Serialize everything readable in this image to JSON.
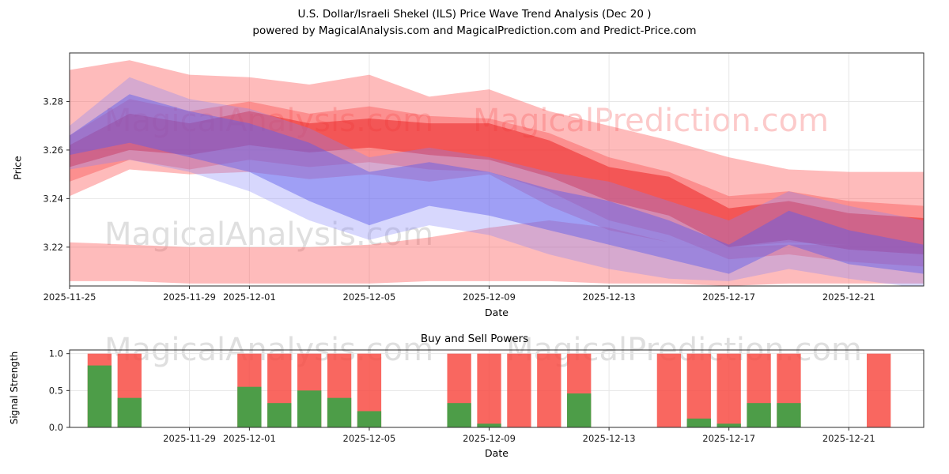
{
  "title": {
    "line1": "U.S. Dollar/Israeli Shekel (ILS) Price Wave Trend Analysis (Dec 20 )",
    "line2": "powered by MagicalAnalysis.com and MagicalPrediction.com and Predict-Price.com"
  },
  "watermarks": {
    "analysis": "MagicalAnalysis.com",
    "prediction": "MagicalPrediction.com"
  },
  "chart_data": [
    {
      "type": "area",
      "name": "price-wave-trend",
      "xlabel": "Date",
      "ylabel": "Price",
      "xlim": [
        0,
        28.5
      ],
      "ylim": [
        3.204,
        3.3
      ],
      "x_days": [
        0,
        2,
        4,
        6,
        8,
        10,
        12,
        14,
        16,
        18,
        20,
        22,
        24,
        26,
        28.5
      ],
      "day0_date": "2025-11-25",
      "xticks": [
        {
          "day": 0,
          "label": "2025-11-25"
        },
        {
          "day": 4,
          "label": "2025-11-29"
        },
        {
          "day": 6,
          "label": "2025-12-01"
        },
        {
          "day": 10,
          "label": "2025-12-05"
        },
        {
          "day": 14,
          "label": "2025-12-09"
        },
        {
          "day": 18,
          "label": "2025-12-13"
        },
        {
          "day": 22,
          "label": "2025-12-17"
        },
        {
          "day": 26,
          "label": "2025-12-21"
        }
      ],
      "yticks": [
        {
          "v": 3.22,
          "label": "3.22"
        },
        {
          "v": 3.24,
          "label": "3.24"
        },
        {
          "v": 3.26,
          "label": "3.26"
        },
        {
          "v": 3.28,
          "label": "3.28"
        }
      ],
      "bands": [
        {
          "name": "red-outer-upper",
          "color": "rgba(252,92,92,0.42)",
          "upper": [
            3.293,
            3.297,
            3.291,
            3.29,
            3.287,
            3.291,
            3.282,
            3.285,
            3.276,
            3.27,
            3.264,
            3.257,
            3.252,
            3.251,
            3.251
          ],
          "lower": [
            3.241,
            3.252,
            3.25,
            3.251,
            3.248,
            3.25,
            3.247,
            3.25,
            3.237,
            3.227,
            3.222,
            3.22,
            3.222,
            3.221,
            3.22
          ]
        },
        {
          "name": "red-lower-strip",
          "color": "rgba(252,92,92,0.42)",
          "upper": [
            3.222,
            3.221,
            3.22,
            3.22,
            3.22,
            3.221,
            3.224,
            3.228,
            3.231,
            3.228,
            3.222,
            3.22,
            3.221,
            3.221,
            3.22
          ],
          "lower": [
            3.206,
            3.206,
            3.205,
            3.205,
            3.205,
            3.205,
            3.206,
            3.206,
            3.206,
            3.205,
            3.205,
            3.204,
            3.205,
            3.205,
            3.205
          ]
        },
        {
          "name": "red-medium",
          "color": "rgba(250,70,70,0.38)",
          "upper": [
            3.266,
            3.281,
            3.276,
            3.28,
            3.275,
            3.278,
            3.274,
            3.273,
            3.267,
            3.257,
            3.251,
            3.241,
            3.243,
            3.239,
            3.237
          ],
          "lower": [
            3.247,
            3.256,
            3.252,
            3.256,
            3.253,
            3.255,
            3.252,
            3.251,
            3.243,
            3.231,
            3.225,
            3.215,
            3.217,
            3.214,
            3.212
          ]
        },
        {
          "name": "red-core",
          "color": "rgba(235,40,40,0.55)",
          "upper": [
            3.262,
            3.275,
            3.271,
            3.276,
            3.271,
            3.273,
            3.271,
            3.271,
            3.264,
            3.253,
            3.249,
            3.236,
            3.239,
            3.234,
            3.232
          ],
          "lower": [
            3.253,
            3.26,
            3.258,
            3.262,
            3.259,
            3.261,
            3.258,
            3.256,
            3.249,
            3.239,
            3.233,
            3.22,
            3.223,
            3.219,
            3.217
          ]
        },
        {
          "name": "blue-light",
          "color": "rgba(130,130,250,0.32)",
          "upper": [
            3.27,
            3.29,
            3.281,
            3.277,
            3.269,
            3.257,
            3.261,
            3.257,
            3.251,
            3.247,
            3.239,
            3.231,
            3.243,
            3.237,
            3.231
          ],
          "lower": [
            3.252,
            3.256,
            3.251,
            3.243,
            3.231,
            3.223,
            3.229,
            3.225,
            3.217,
            3.211,
            3.207,
            3.206,
            3.211,
            3.207,
            3.203
          ]
        },
        {
          "name": "blue-main",
          "color": "rgba(90,90,235,0.45)",
          "upper": [
            3.266,
            3.283,
            3.276,
            3.271,
            3.263,
            3.251,
            3.255,
            3.251,
            3.244,
            3.239,
            3.231,
            3.221,
            3.235,
            3.227,
            3.221
          ],
          "lower": [
            3.258,
            3.263,
            3.257,
            3.251,
            3.239,
            3.229,
            3.237,
            3.233,
            3.227,
            3.221,
            3.215,
            3.209,
            3.221,
            3.213,
            3.209
          ]
        }
      ]
    },
    {
      "type": "bar",
      "name": "buy-sell-powers",
      "title": "Buy and Sell Powers",
      "xlabel": "Date",
      "ylabel": "Signal Strength",
      "xlim": [
        0,
        28.5
      ],
      "ylim": [
        0,
        1.05
      ],
      "bar_total": 1.0,
      "colors": {
        "buy": "#43a047",
        "sell": "#f84c44"
      },
      "xticks": [
        {
          "day": 4,
          "label": "2025-11-29"
        },
        {
          "day": 6,
          "label": "2025-12-01"
        },
        {
          "day": 10,
          "label": "2025-12-05"
        },
        {
          "day": 14,
          "label": "2025-12-09"
        },
        {
          "day": 18,
          "label": "2025-12-13"
        },
        {
          "day": 22,
          "label": "2025-12-17"
        },
        {
          "day": 26,
          "label": "2025-12-21"
        }
      ],
      "yticks": [
        {
          "v": 0,
          "label": "0.0"
        },
        {
          "v": 0.5,
          "label": "0.5"
        },
        {
          "v": 1,
          "label": "1.0"
        }
      ],
      "bars": [
        {
          "date": "2025-11-26",
          "day": 1,
          "buy": 0.84,
          "sell": 1.0
        },
        {
          "date": "2025-11-27",
          "day": 2,
          "buy": 0.4,
          "sell": 1.0
        },
        {
          "date": "2025-12-01",
          "day": 6,
          "buy": 0.55,
          "sell": 1.0
        },
        {
          "date": "2025-12-02",
          "day": 7,
          "buy": 0.33,
          "sell": 1.0
        },
        {
          "date": "2025-12-03",
          "day": 8,
          "buy": 0.5,
          "sell": 1.0
        },
        {
          "date": "2025-12-04",
          "day": 9,
          "buy": 0.4,
          "sell": 1.0
        },
        {
          "date": "2025-12-05",
          "day": 10,
          "buy": 0.22,
          "sell": 1.0
        },
        {
          "date": "2025-12-08",
          "day": 13,
          "buy": 0.33,
          "sell": 1.0
        },
        {
          "date": "2025-12-09",
          "day": 14,
          "buy": 0.05,
          "sell": 1.0
        },
        {
          "date": "2025-12-10",
          "day": 15,
          "buy": 0.0,
          "sell": 1.0
        },
        {
          "date": "2025-12-11",
          "day": 16,
          "buy": 0.0,
          "sell": 1.0
        },
        {
          "date": "2025-12-12",
          "day": 17,
          "buy": 0.46,
          "sell": 1.0
        },
        {
          "date": "2025-12-15",
          "day": 20,
          "buy": 0.0,
          "sell": 1.0
        },
        {
          "date": "2025-12-16",
          "day": 21,
          "buy": 0.12,
          "sell": 1.0
        },
        {
          "date": "2025-12-17",
          "day": 22,
          "buy": 0.05,
          "sell": 1.0
        },
        {
          "date": "2025-12-18",
          "day": 23,
          "buy": 0.33,
          "sell": 1.0
        },
        {
          "date": "2025-12-19",
          "day": 24,
          "buy": 0.33,
          "sell": 1.0
        },
        {
          "date": "2025-12-22",
          "day": 27,
          "buy": 0.0,
          "sell": 1.0
        }
      ]
    }
  ]
}
